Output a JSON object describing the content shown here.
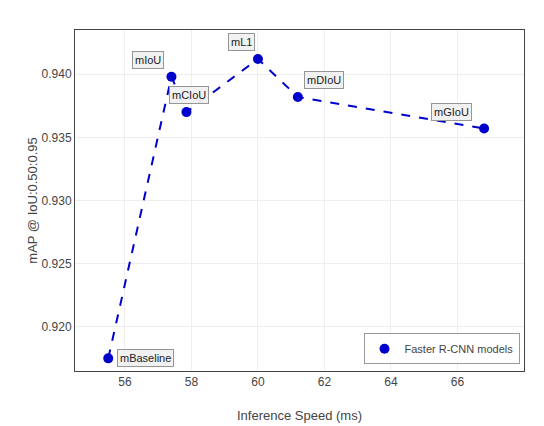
{
  "chart_data": {
    "type": "line",
    "x_label": "Inference Speed (ms)",
    "y_label": "mAP @ IoU:0.50:0.95",
    "x": [
      55.5,
      57.4,
      57.85,
      60.0,
      61.2,
      66.8
    ],
    "series": [
      {
        "name": "Faster R-CNN models",
        "color": "#0000cd",
        "values": [
          0.9175,
          0.9398,
          0.937,
          0.9412,
          0.9382,
          0.9357
        ],
        "marker": "circle",
        "line_style": "dashed"
      }
    ],
    "annotations": [
      {
        "text": "mBaseline",
        "x": 55.5,
        "y": 0.9175
      },
      {
        "text": "mIoU",
        "x": 57.4,
        "y": 0.9398
      },
      {
        "text": "mCIoU",
        "x": 57.85,
        "y": 0.937
      },
      {
        "text": "mL1",
        "x": 60.0,
        "y": 0.9412
      },
      {
        "text": "mDIoU",
        "x": 61.2,
        "y": 0.9382
      },
      {
        "text": "mGIoU",
        "x": 66.8,
        "y": 0.9357
      }
    ],
    "xlim": [
      54.5,
      68.0
    ],
    "ylim": [
      0.9165,
      0.9435
    ],
    "xticks": [
      56,
      58,
      60,
      62,
      64,
      66
    ],
    "yticks": [
      {
        "value": 0.92,
        "label": "0.920"
      },
      0.925,
      {
        "value": 0.93,
        "label": "0.930"
      },
      0.935,
      {
        "value": 0.94,
        "label": "0.940"
      }
    ],
    "grid": true,
    "legend": "lower right"
  }
}
